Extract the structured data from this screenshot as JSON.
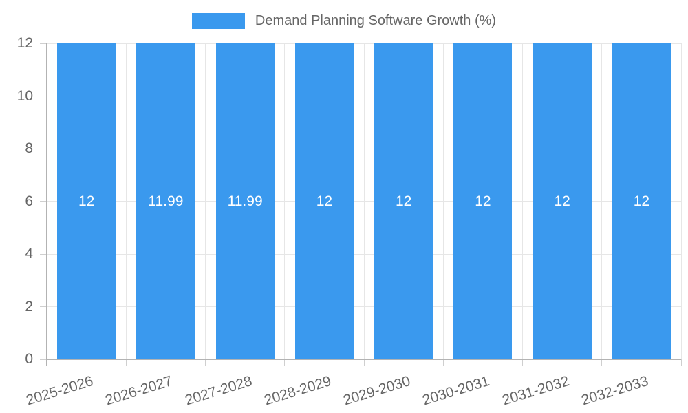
{
  "legend": {
    "label": "Demand Planning Software Growth (%)"
  },
  "chart_data": {
    "type": "bar",
    "title": "Demand Planning Software Growth (%)",
    "categories": [
      "2025-2026",
      "2026-2027",
      "2027-2028",
      "2028-2029",
      "2029-2030",
      "2030-2031",
      "2031-2032",
      "2032-2033"
    ],
    "values": [
      12,
      11.99,
      11.99,
      12,
      12,
      12,
      12,
      12
    ],
    "value_labels": [
      "12",
      "11.99",
      "11.99",
      "12",
      "12",
      "12",
      "12",
      "12"
    ],
    "xlabel": "",
    "ylabel": "",
    "ylim": [
      0,
      12
    ],
    "yticks": [
      0,
      2,
      4,
      6,
      8,
      10,
      12
    ],
    "grid": true,
    "legend_position": "top",
    "colors": {
      "bar": "#3A99EE",
      "value_label": "#ffffff",
      "tick_text": "#666666",
      "legend_text": "#666666",
      "gridline": "#e6e6e6",
      "axis_line": "#b3b3b3",
      "tick_mark": "#cfcfcf",
      "background": "#ffffff"
    }
  }
}
